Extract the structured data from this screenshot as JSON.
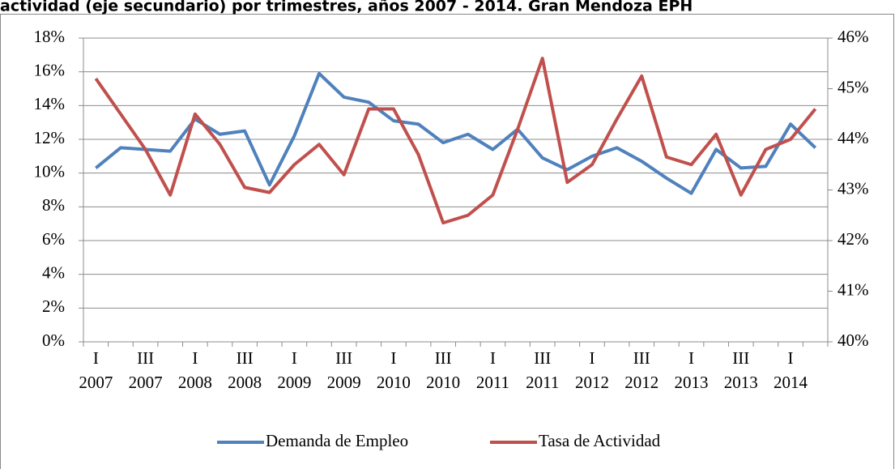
{
  "chart_data": {
    "type": "line",
    "title": "actividad (eje secundario) por trimestres, años 2007 - 2014. Gran Mendoza EPH",
    "categories": [
      "I 2007",
      null,
      "III 2007",
      null,
      "I 2008",
      null,
      "III 2008",
      null,
      "I 2009",
      null,
      "III 2009",
      null,
      "I 2010",
      null,
      "III 2010",
      null,
      "I 2011",
      null,
      "III 2011",
      null,
      "I 2012",
      null,
      "III 2012",
      null,
      "I 2013",
      null,
      "III 2013",
      null,
      "I 2014",
      null
    ],
    "series": [
      {
        "name": "Demanda de Empleo",
        "color": "#4f81bd",
        "values": [
          10.3,
          11.5,
          11.4,
          11.3,
          13.2,
          12.3,
          12.5,
          9.3,
          12.2,
          15.9,
          14.5,
          14.2,
          13.1,
          12.9,
          11.8,
          12.3,
          11.4,
          12.6,
          10.9,
          10.2,
          11.0,
          11.5,
          10.7,
          9.7,
          8.8,
          11.4,
          10.3,
          10.4,
          12.9,
          11.5
        ]
      },
      {
        "name": "Tasa de Actividad",
        "color": "#c0504d",
        "axis": "y2",
        "values": [
          45.2,
          44.5,
          43.8,
          42.9,
          44.5,
          43.9,
          43.05,
          42.95,
          43.5,
          43.9,
          43.3,
          44.6,
          44.6,
          43.7,
          42.35,
          42.5,
          42.9,
          44.2,
          45.6,
          43.15,
          43.5,
          44.4,
          45.25,
          43.65,
          43.5,
          44.1,
          42.9,
          43.8,
          44.0,
          44.6
        ]
      }
    ],
    "ylim": [
      0,
      18
    ],
    "yticks": [
      {
        "value": 0,
        "label": "0%"
      },
      {
        "value": 2,
        "label": "2%"
      },
      {
        "value": 4,
        "label": "4%"
      },
      {
        "value": 6,
        "label": "6%"
      },
      {
        "value": 8,
        "label": "8%"
      },
      {
        "value": 10,
        "label": "10%"
      },
      {
        "value": 12,
        "label": "12%"
      },
      {
        "value": 14,
        "label": "14%"
      },
      {
        "value": 16,
        "label": "16%"
      },
      {
        "value": 18,
        "label": "18%"
      }
    ],
    "y2lim": [
      40,
      46
    ],
    "y2ticks": [
      {
        "value": 40,
        "label": "40%"
      },
      {
        "value": 41,
        "label": "41%"
      },
      {
        "value": 42,
        "label": "42%"
      },
      {
        "value": 43,
        "label": "43%"
      },
      {
        "value": 44,
        "label": "44%"
      },
      {
        "value": 45,
        "label": "45%"
      },
      {
        "value": 46,
        "label": "46%"
      }
    ],
    "grid": true,
    "legend": "bottom"
  }
}
